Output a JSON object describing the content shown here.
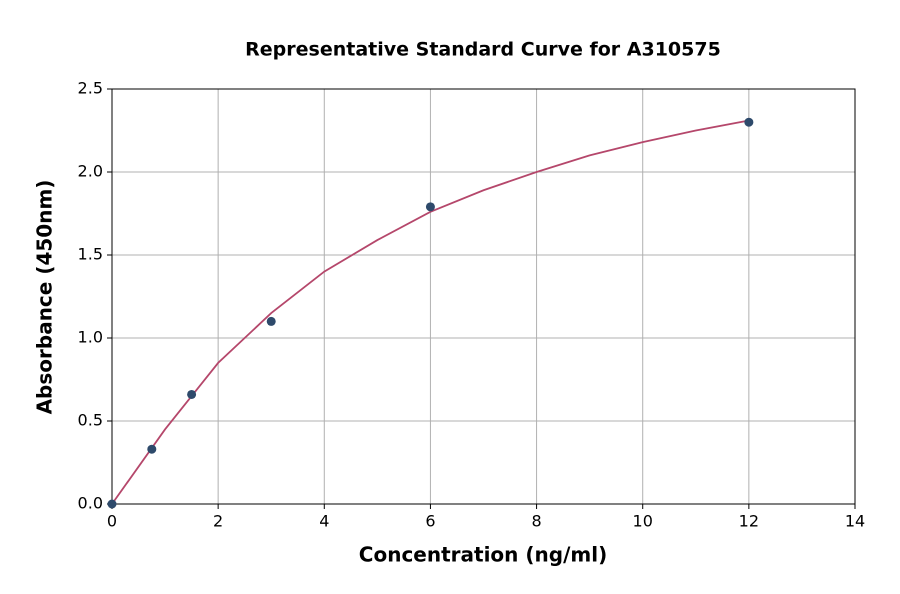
{
  "chart_data": {
    "type": "scatter",
    "title": "Representative Standard Curve for A310575",
    "x_label": "Concentration (ng/ml)",
    "y_label": "Absorbance (450nm)",
    "points": {
      "color": "#2e4a6b",
      "x": [
        0,
        0.75,
        1.5,
        3,
        6,
        12
      ],
      "values": [
        0,
        0.33,
        0.66,
        1.1,
        1.79,
        2.3
      ]
    },
    "fit": {
      "color": "#b5476b",
      "x": [
        0,
        1,
        2,
        3,
        4,
        5,
        6,
        7,
        8,
        9,
        10,
        11,
        12
      ],
      "values": [
        0,
        0.45,
        0.85,
        1.15,
        1.4,
        1.59,
        1.76,
        1.89,
        2.0,
        2.1,
        2.18,
        2.25,
        2.31
      ]
    },
    "xlim": [
      0,
      14
    ],
    "xticks": [
      0,
      2,
      4,
      6,
      8,
      10,
      12,
      14
    ],
    "ylim": [
      0,
      2.5
    ],
    "yticks": [
      {
        "value": 0,
        "label": "0.0"
      },
      {
        "value": 0.5,
        "label": "0.5"
      },
      {
        "value": 1,
        "label": "1.0"
      },
      {
        "value": 1.5,
        "label": "1.5"
      },
      {
        "value": 2,
        "label": "2.0"
      },
      {
        "value": 2.5,
        "label": "2.5"
      }
    ],
    "grid": true
  }
}
